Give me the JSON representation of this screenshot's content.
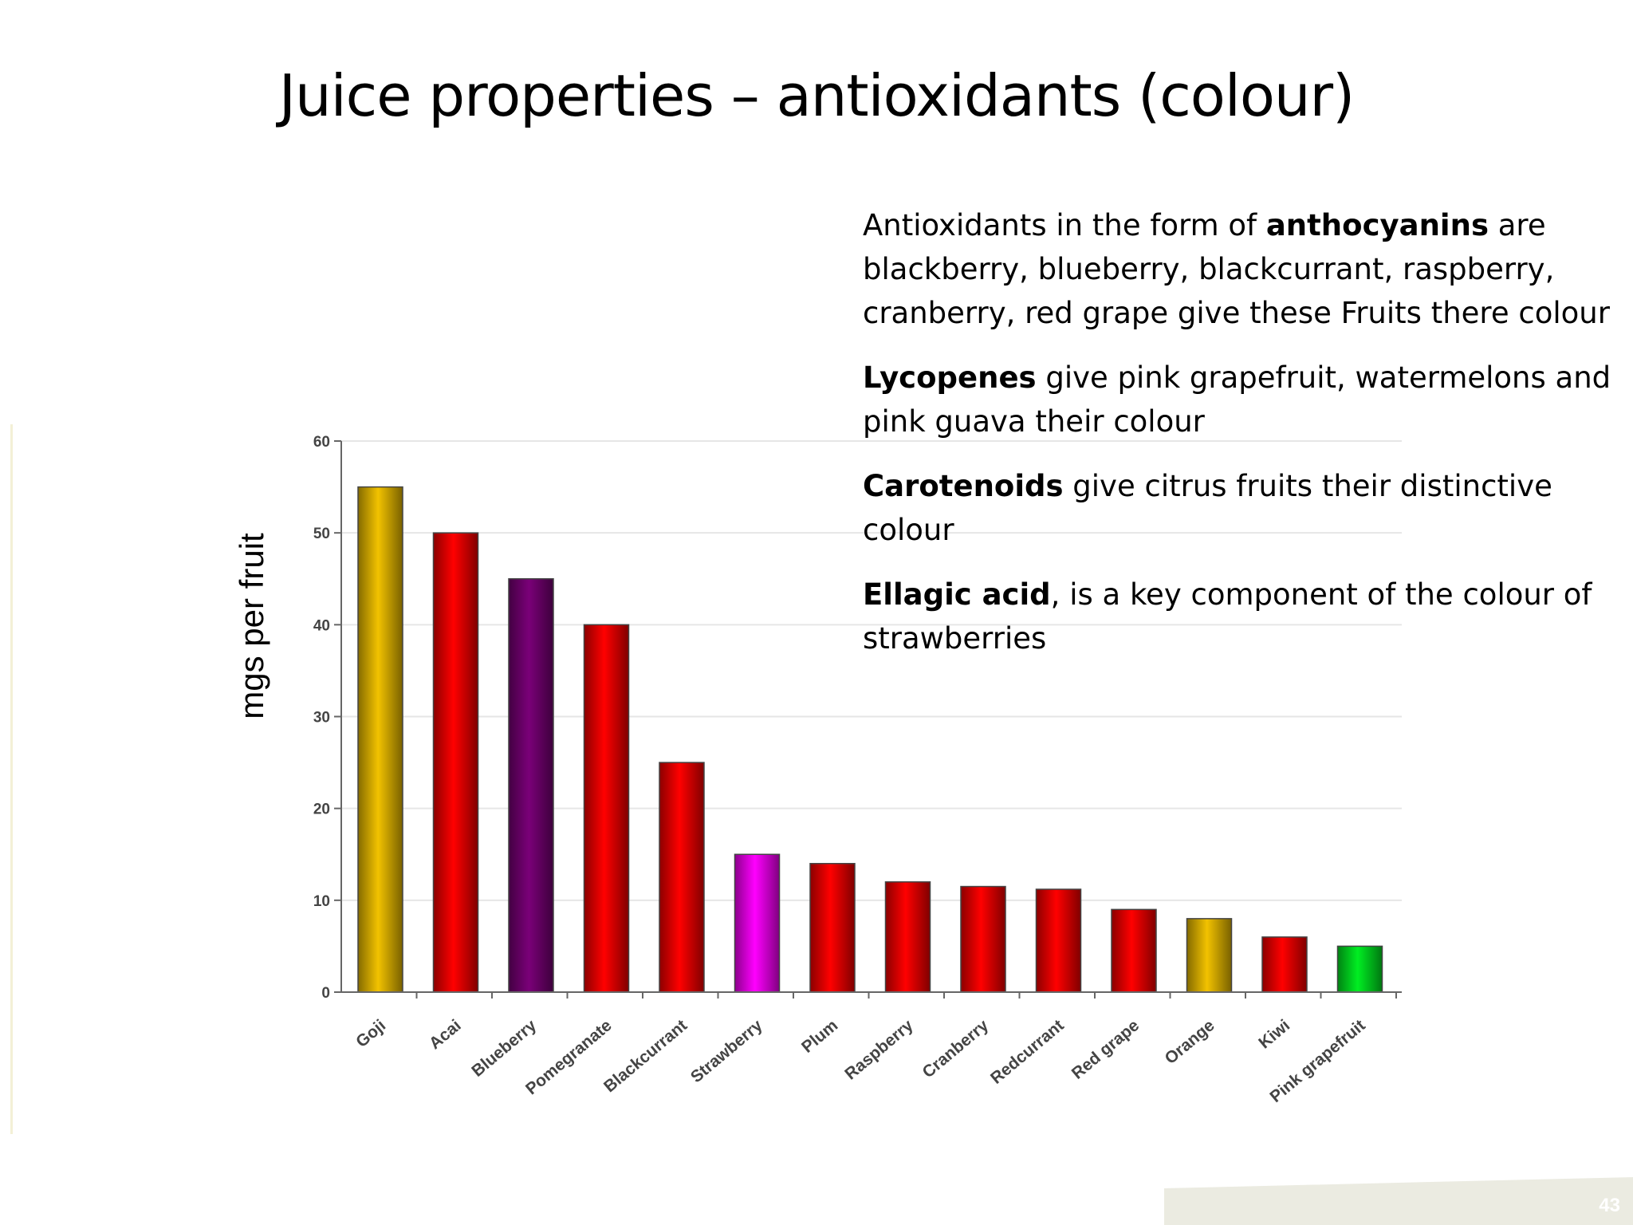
{
  "slide": {
    "title": "Juice properties – antioxidants (colour)",
    "page_number": "43"
  },
  "text_panel": {
    "p1_bold": "anthocyanins",
    "p1_before": "Antioxidants in the form of ",
    "p1_after": " are blackberry, blueberry, blackcurrant, raspberry, cranberry, red grape give these Fruits there colour",
    "p2_bold": "Lycopenes",
    "p2_after": " give pink grapefruit, watermelons and pink guava their colour",
    "p3_bold": "Carotenoids",
    "p3_after": " give citrus fruits their distinctive colour",
    "p4_bold": "Ellagic acid",
    "p4_after": ", is a key component of the colour of strawberries"
  },
  "chart_data": {
    "type": "bar",
    "title": "",
    "xlabel": "",
    "ylabel": "mgs per fruit",
    "ylim": [
      0,
      60
    ],
    "yticks": [
      0,
      10,
      20,
      30,
      40,
      50,
      60
    ],
    "grid": true,
    "categories": [
      "Goji",
      "Acai",
      "Blueberry",
      "Pomegranate",
      "Blackcurrant",
      "Strawberry",
      "Plum",
      "Raspberry",
      "Cranberry",
      "Redcurrant",
      "Red grape",
      "Orange",
      "Kiwi",
      "Pink grapefruit"
    ],
    "values": [
      55,
      50,
      45,
      40,
      25,
      15,
      14,
      12,
      11.5,
      11.2,
      9,
      8,
      6,
      5
    ],
    "bar_colors": [
      "#f2c200",
      "#ff0000",
      "#7a0078",
      "#ff0000",
      "#ff0000",
      "#ff00ff",
      "#ff0000",
      "#ff0000",
      "#ff0000",
      "#ff0000",
      "#ff0000",
      "#f2c200",
      "#ff0000",
      "#00ee22"
    ]
  }
}
